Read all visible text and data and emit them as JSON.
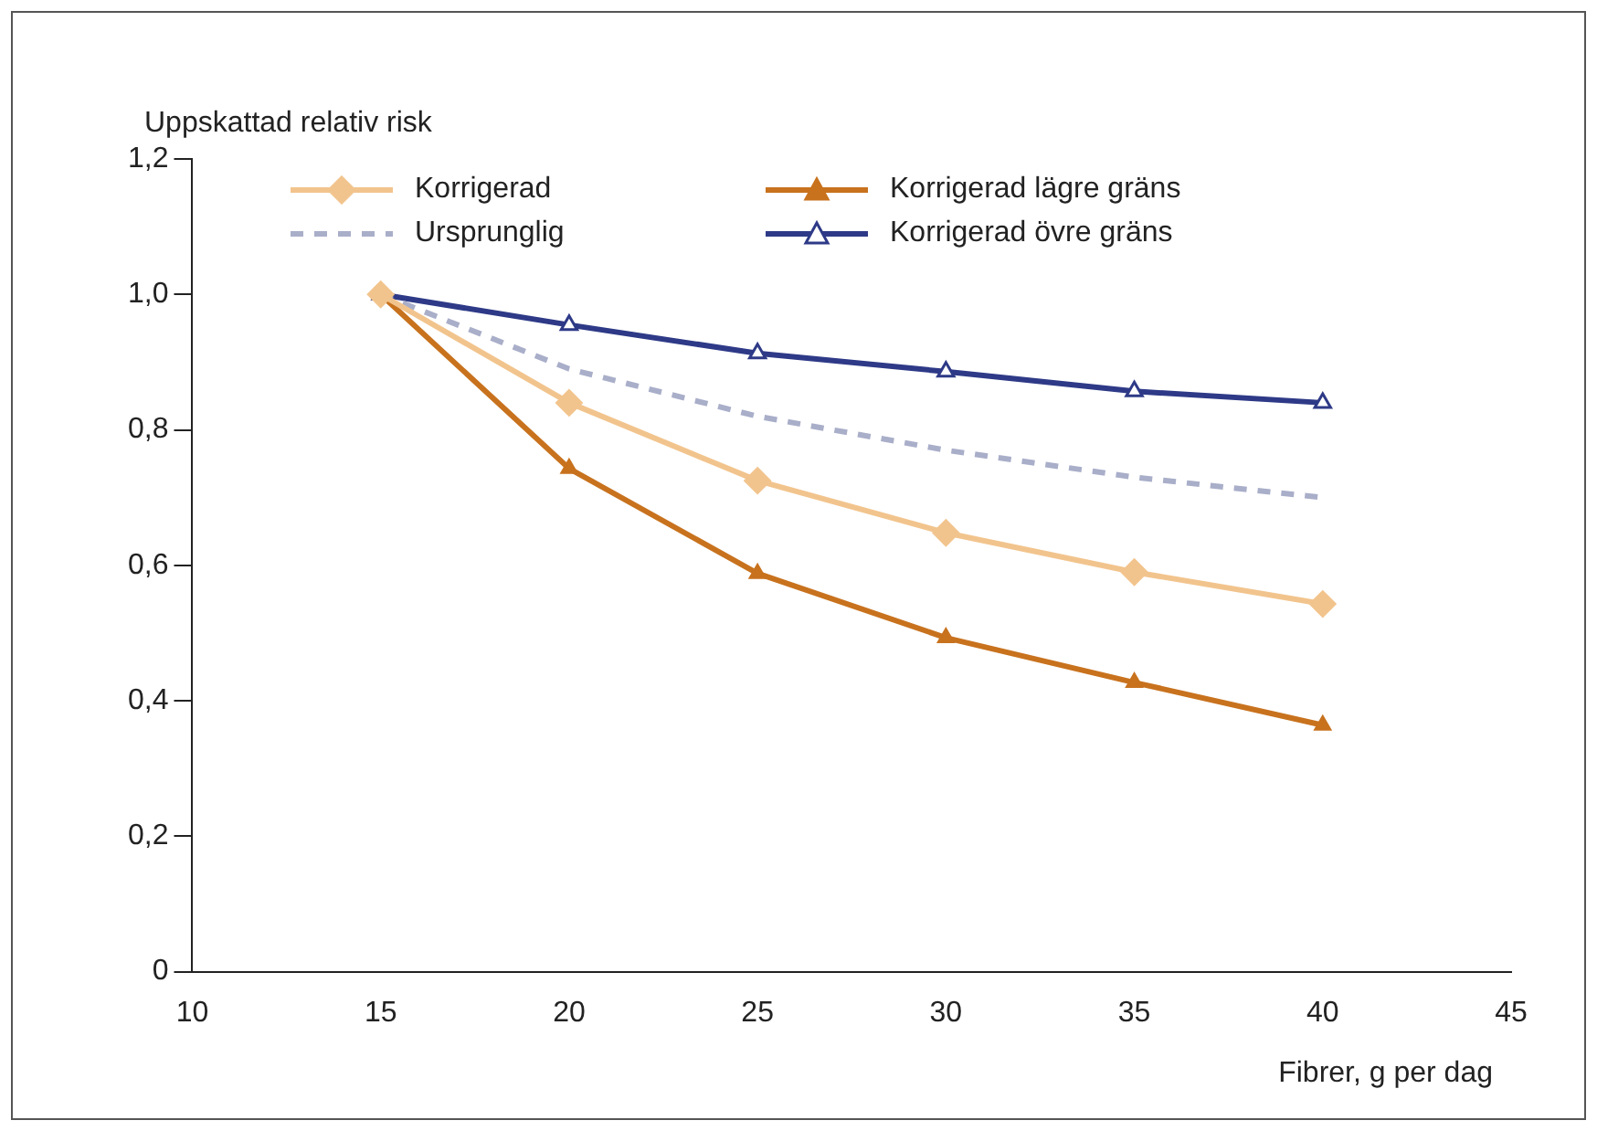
{
  "chart_data": {
    "type": "line",
    "ylabel": "Uppskattad relativ risk",
    "xlabel": "Fibrer, g per dag",
    "x": [
      15,
      20,
      25,
      30,
      35,
      40
    ],
    "xlim": [
      10,
      45
    ],
    "xticks": [
      10,
      15,
      20,
      25,
      30,
      35,
      40,
      45
    ],
    "ylim": [
      0,
      1.2
    ],
    "yticks": [
      0,
      {
        "value": 0.2,
        "label": "0,2"
      },
      {
        "value": 0.4,
        "label": "0,4"
      },
      {
        "value": 0.6,
        "label": "0,6"
      },
      {
        "value": 0.8,
        "label": "0,8"
      },
      {
        "value": 1.0,
        "label": "1,0"
      },
      {
        "value": 1.2,
        "label": "1,2"
      }
    ],
    "grid": false,
    "legend": "top left",
    "series": [
      {
        "name": "Korrigerad",
        "color": "#f2c48d",
        "marker": "diamond",
        "line_style": "solid",
        "values": [
          1.0,
          0.84,
          0.725,
          0.648,
          0.59,
          0.543
        ]
      },
      {
        "name": "Ursprunglig",
        "color": "#a9aec9",
        "marker": "none",
        "line_style": "dashed",
        "values": [
          1.0,
          0.89,
          0.82,
          0.77,
          0.73,
          0.7
        ]
      },
      {
        "name": "Korrigerad lägre gräns",
        "color": "#c8721e",
        "marker": "triangle",
        "line_style": "solid",
        "values": [
          1.0,
          0.743,
          0.588,
          0.493,
          0.427,
          0.364
        ]
      },
      {
        "name": "Korrigerad övre gräns",
        "color": "#2e3a87",
        "marker": "triangle",
        "line_style": "solid",
        "values": [
          1.0,
          0.955,
          0.913,
          0.886,
          0.857,
          0.84
        ]
      }
    ]
  }
}
